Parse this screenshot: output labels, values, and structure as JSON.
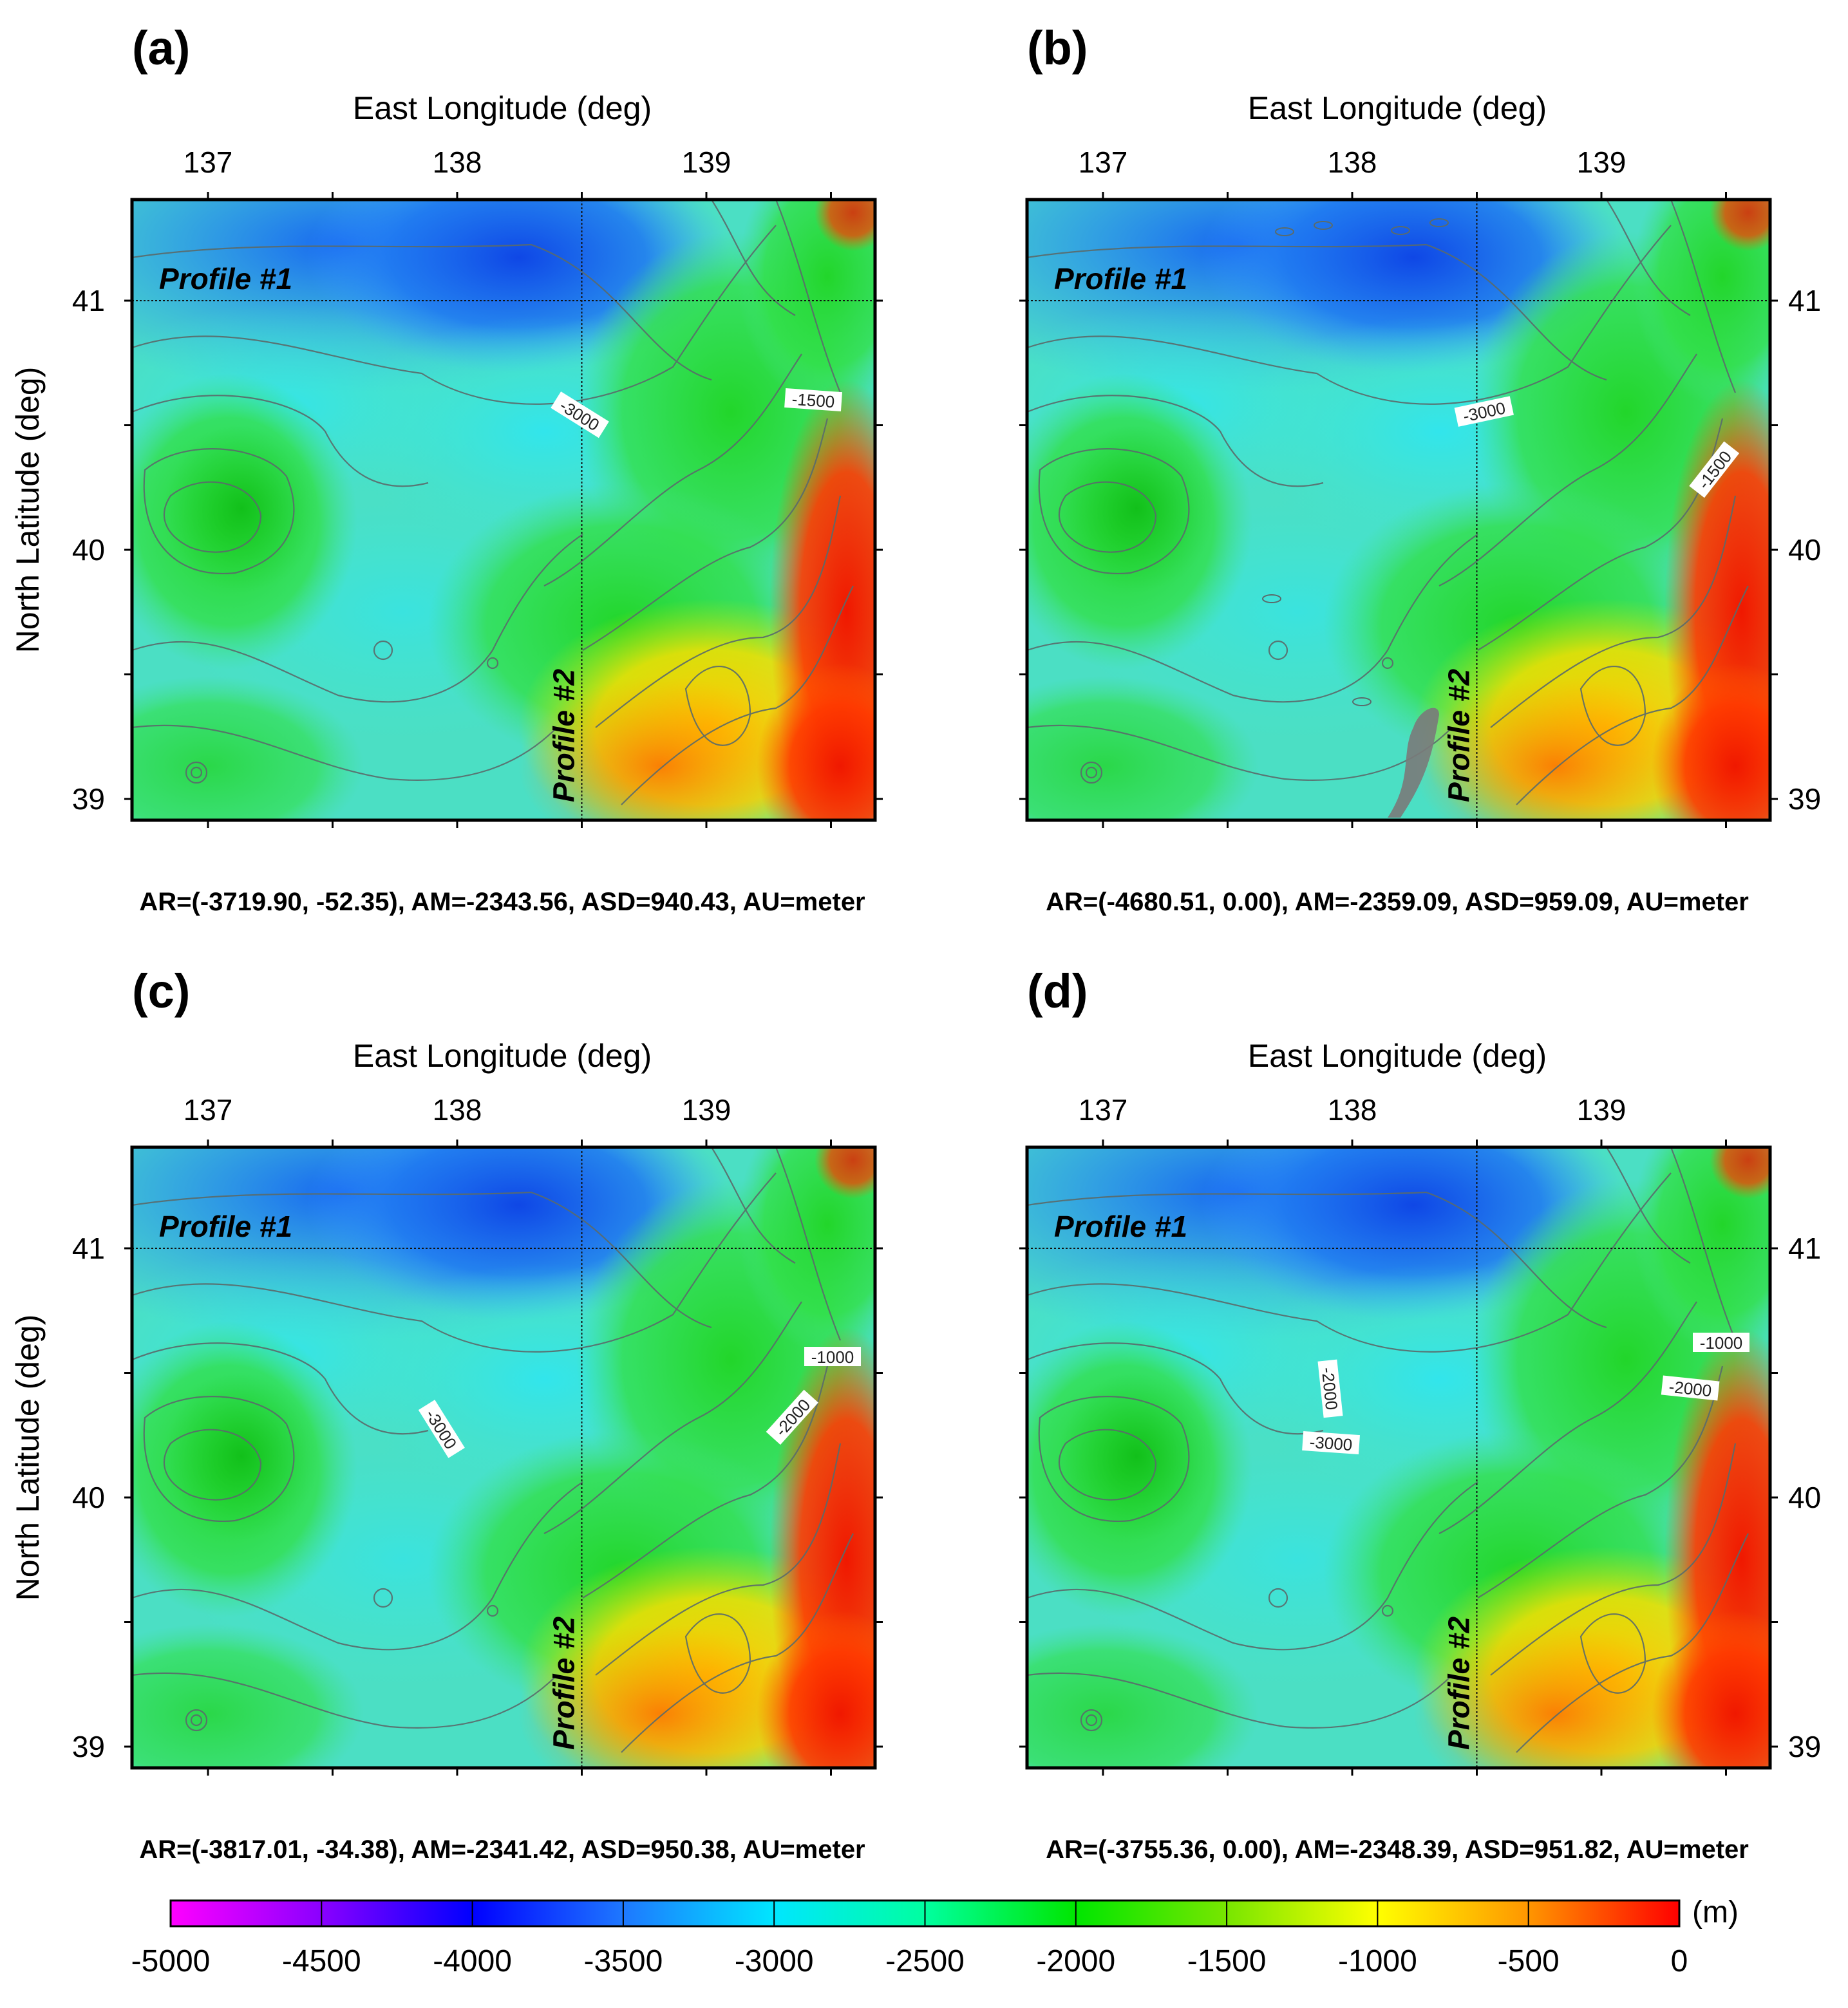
{
  "figure": {
    "common": {
      "x_axis_title": "East Longitude (deg)",
      "y_axis_title": "North Latitude (deg)",
      "x_ticks": [
        "137",
        "138",
        "139"
      ],
      "y_ticks": [
        "41",
        "40",
        "39"
      ],
      "profile1_label": "Profile #1",
      "profile2_label": "Profile #2"
    },
    "panels": [
      {
        "label": "(a)",
        "stats": "AR=(-3719.90, -52.35), AM=-2343.56, ASD=940.43, AU=meter",
        "contour_labels": [
          "-3000",
          "-1500"
        ]
      },
      {
        "label": "(b)",
        "stats": "AR=(-4680.51, 0.00), AM=-2359.09, ASD=959.09, AU=meter",
        "contour_labels": [
          "-3000",
          "-1500"
        ]
      },
      {
        "label": "(c)",
        "stats": "AR=(-3817.01, -34.38), AM=-2341.42, ASD=950.38, AU=meter",
        "contour_labels": [
          "-1000",
          "-3000",
          "-2000"
        ]
      },
      {
        "label": "(d)",
        "stats": "AR=(-3755.36, 0.00), AM=-2348.39, ASD=951.82, AU=meter",
        "contour_labels": [
          "-1000",
          "-2000",
          "-3000",
          "-2000"
        ]
      }
    ],
    "colorbar": {
      "unit": "(m)",
      "ticks": [
        "-5000",
        "-4500",
        "-4000",
        "-3500",
        "-3000",
        "-2500",
        "-2000",
        "-1500",
        "-1000",
        "-500",
        "0"
      ],
      "stops": [
        "#ff00ff",
        "#8a00ff",
        "#0000ff",
        "#1e78ff",
        "#00e6ff",
        "#00ffa0",
        "#00e600",
        "#78e600",
        "#ffff00",
        "#ff9600",
        "#ff0000"
      ]
    }
  }
}
